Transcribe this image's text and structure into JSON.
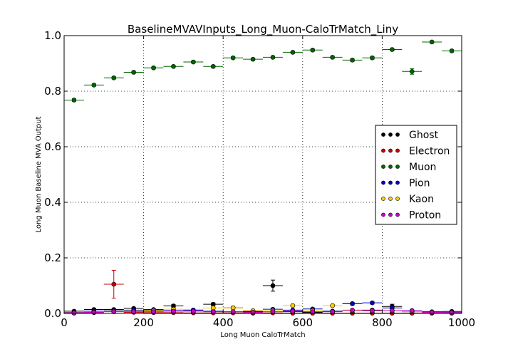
{
  "chart_data": {
    "type": "scatter",
    "title": "BaselineMVAVInputs_Long_Muon-CaloTrMatch_Liny",
    "xlabel": "Long Muon CaloTrMatch",
    "ylabel": "Long Muon Baseline MVA Output",
    "xlim": [
      0,
      1000
    ],
    "ylim": [
      0,
      1.0
    ],
    "xticks": [
      "0",
      "200",
      "400",
      "600",
      "800",
      "1000"
    ],
    "yticks": [
      "0.0",
      "0.2",
      "0.4",
      "0.6",
      "0.8",
      "1.0"
    ],
    "grid": true,
    "legend_position": "right",
    "bin_half_width": 25,
    "series": [
      {
        "name": "Ghost",
        "color": "#000000",
        "x": [
          25,
          75,
          125,
          175,
          225,
          275,
          325,
          375,
          425,
          475,
          525,
          575,
          625,
          675,
          725,
          775,
          825,
          875,
          925,
          975
        ],
        "y": [
          0.008,
          0.014,
          0.014,
          0.018,
          0.012,
          0.027,
          0.012,
          0.033,
          0.02,
          0.008,
          0.1,
          0.006,
          0.004,
          0.008,
          0.035,
          0.012,
          0.025,
          0.006,
          0.004,
          0.007
        ],
        "yerr": [
          0.002,
          0.003,
          0.003,
          0.003,
          0.003,
          0.005,
          0.003,
          0.005,
          0.004,
          0.003,
          0.02,
          0.002,
          0.002,
          0.003,
          0.005,
          0.003,
          0.008,
          0.002,
          0.002,
          0.002
        ]
      },
      {
        "name": "Electron",
        "color": "#cc0000",
        "x": [
          25,
          75,
          125,
          175,
          225,
          275,
          325,
          375,
          425,
          475,
          525,
          575,
          625,
          675,
          725,
          775,
          825,
          875,
          925,
          975
        ],
        "y": [
          0.001,
          0.003,
          0.105,
          0.004,
          0.003,
          0.003,
          0.002,
          0.002,
          0.002,
          0.001,
          0.002,
          0.001,
          0.001,
          0.001,
          0.001,
          0.001,
          0.001,
          0.001,
          0.001,
          0.001
        ],
        "yerr": [
          0.001,
          0.002,
          0.05,
          0.002,
          0.002,
          0.002,
          0.001,
          0.001,
          0.001,
          0.001,
          0.001,
          0.001,
          0.001,
          0.001,
          0.001,
          0.001,
          0.001,
          0.001,
          0.001,
          0.001
        ]
      },
      {
        "name": "Muon",
        "color": "#006600",
        "x": [
          25,
          75,
          125,
          175,
          225,
          275,
          325,
          375,
          425,
          475,
          525,
          575,
          625,
          675,
          725,
          775,
          825,
          875,
          925,
          975
        ],
        "y": [
          0.768,
          0.822,
          0.848,
          0.868,
          0.884,
          0.889,
          0.905,
          0.889,
          0.92,
          0.915,
          0.922,
          0.94,
          0.948,
          0.922,
          0.912,
          0.92,
          0.95,
          0.871,
          0.977,
          0.945
        ],
        "yerr": [
          0.004,
          0.004,
          0.004,
          0.004,
          0.004,
          0.004,
          0.004,
          0.004,
          0.004,
          0.004,
          0.004,
          0.004,
          0.004,
          0.004,
          0.005,
          0.005,
          0.005,
          0.01,
          0.004,
          0.004
        ]
      },
      {
        "name": "Pion",
        "color": "#0000cc",
        "x": [
          25,
          75,
          125,
          175,
          225,
          275,
          325,
          375,
          425,
          475,
          525,
          575,
          625,
          675,
          725,
          775,
          825,
          875,
          925,
          975
        ],
        "y": [
          0.004,
          0.008,
          0.01,
          0.012,
          0.014,
          0.01,
          0.012,
          0.008,
          0.006,
          0.006,
          0.015,
          0.012,
          0.016,
          0.008,
          0.035,
          0.038,
          0.02,
          0.01,
          0.006,
          0.004
        ],
        "yerr": [
          0.001,
          0.002,
          0.002,
          0.002,
          0.002,
          0.002,
          0.002,
          0.002,
          0.002,
          0.002,
          0.003,
          0.002,
          0.003,
          0.002,
          0.004,
          0.004,
          0.003,
          0.002,
          0.002,
          0.001
        ]
      },
      {
        "name": "Kaon",
        "color": "#ffcc00",
        "x": [
          25,
          75,
          125,
          175,
          225,
          275,
          325,
          375,
          425,
          475,
          525,
          575,
          625,
          675,
          725,
          775,
          825,
          875,
          925,
          975
        ],
        "y": [
          0.003,
          0.005,
          0.008,
          0.008,
          0.01,
          0.015,
          0.008,
          0.02,
          0.02,
          0.01,
          0.01,
          0.028,
          0.01,
          0.028,
          0.01,
          0.01,
          0.01,
          0.006,
          0.004,
          0.003
        ],
        "yerr": [
          0.001,
          0.002,
          0.002,
          0.002,
          0.002,
          0.003,
          0.002,
          0.003,
          0.003,
          0.002,
          0.002,
          0.004,
          0.002,
          0.004,
          0.002,
          0.002,
          0.002,
          0.002,
          0.001,
          0.001
        ]
      },
      {
        "name": "Proton",
        "color": "#cc00cc",
        "x": [
          25,
          75,
          125,
          175,
          225,
          275,
          325,
          375,
          425,
          475,
          525,
          575,
          625,
          675,
          725,
          775,
          825,
          875,
          925,
          975
        ],
        "y": [
          0.002,
          0.004,
          0.006,
          0.006,
          0.006,
          0.008,
          0.008,
          0.006,
          0.006,
          0.004,
          0.006,
          0.008,
          0.006,
          0.006,
          0.012,
          0.01,
          0.01,
          0.01,
          0.004,
          0.003
        ],
        "yerr": [
          0.001,
          0.001,
          0.002,
          0.002,
          0.002,
          0.002,
          0.002,
          0.002,
          0.002,
          0.001,
          0.002,
          0.002,
          0.002,
          0.002,
          0.002,
          0.002,
          0.002,
          0.002,
          0.001,
          0.001
        ]
      }
    ]
  }
}
